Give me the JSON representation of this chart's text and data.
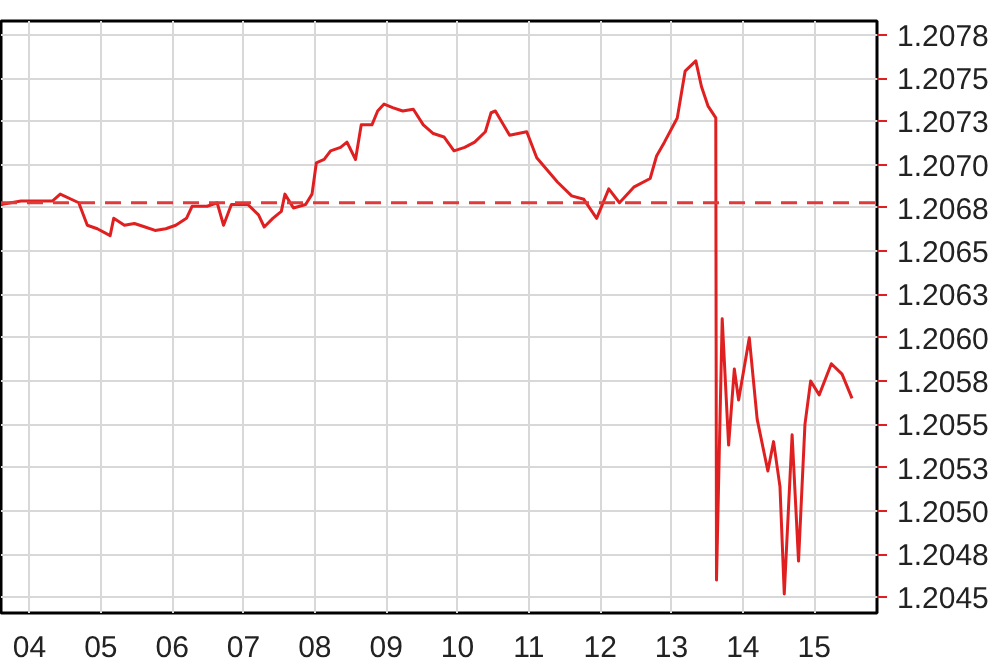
{
  "chart_data": {
    "type": "line",
    "x": [
      3.6,
      3.88,
      4.32,
      4.43,
      4.69,
      4.81,
      4.95,
      5.13,
      5.18,
      5.33,
      5.47,
      5.62,
      5.76,
      5.91,
      6.05,
      6.2,
      6.28,
      6.49,
      6.63,
      6.72,
      6.83,
      7.06,
      7.21,
      7.29,
      7.41,
      7.53,
      7.58,
      7.7,
      7.87,
      7.96,
      8.02,
      8.13,
      8.22,
      8.36,
      8.45,
      8.57,
      8.65,
      8.8,
      8.88,
      8.97,
      9.09,
      9.23,
      9.38,
      9.52,
      9.66,
      9.81,
      9.95,
      10.1,
      10.24,
      10.39,
      10.47,
      10.53,
      10.73,
      10.97,
      11.11,
      11.4,
      11.6,
      11.77,
      11.95,
      12.12,
      12.27,
      12.47,
      12.7,
      12.79,
      12.9,
      13.08,
      13.19,
      13.34,
      13.42,
      13.51,
      13.62,
      13.63,
      13.71,
      13.8,
      13.88,
      13.94,
      14.09,
      14.2,
      14.35,
      14.43,
      14.52,
      14.58,
      14.69,
      14.78,
      14.87,
      14.95,
      15.07,
      15.24,
      15.39,
      15.53
    ],
    "series": [
      {
        "color": "#e02020",
        "values": [
          1.20677,
          1.20679,
          1.20679,
          1.20683,
          1.20678,
          1.20665,
          1.20663,
          1.20659,
          1.20669,
          1.20665,
          1.20666,
          1.20664,
          1.20662,
          1.20663,
          1.20665,
          1.20669,
          1.20676,
          1.20676,
          1.20678,
          1.20665,
          1.20677,
          1.20677,
          1.20671,
          1.20664,
          1.20669,
          1.20673,
          1.20683,
          1.20675,
          1.20677,
          1.20683,
          1.20701,
          1.20703,
          1.20708,
          1.2071,
          1.20713,
          1.20703,
          1.20723,
          1.20723,
          1.20731,
          1.20735,
          1.20733,
          1.20731,
          1.20732,
          1.20723,
          1.20718,
          1.20716,
          1.20708,
          1.2071,
          1.20713,
          1.20719,
          1.2073,
          1.20731,
          1.20717,
          1.20719,
          1.20704,
          1.2069,
          1.20682,
          1.2068,
          1.20669,
          1.20686,
          1.20678,
          1.20687,
          1.20692,
          1.20705,
          1.20713,
          1.20727,
          1.20754,
          1.2076,
          1.20745,
          1.20734,
          1.20727,
          1.2046,
          1.20611,
          1.20538,
          1.20582,
          1.20564,
          1.206,
          1.20553,
          1.20523,
          1.2054,
          1.20514,
          1.20452,
          1.20544,
          1.20471,
          1.2055,
          1.20575,
          1.20567,
          1.20585,
          1.20579,
          1.20565
        ]
      }
    ],
    "xlim": [
      3.6,
      15.88
    ],
    "ylim": [
      1.20441,
      1.20783
    ],
    "xticks": [
      {
        "value": 4,
        "label": "04"
      },
      {
        "value": 5,
        "label": "05"
      },
      {
        "value": 6,
        "label": "06"
      },
      {
        "value": 7,
        "label": "07"
      },
      {
        "value": 8,
        "label": "08"
      },
      {
        "value": 9,
        "label": "09"
      },
      {
        "value": 10,
        "label": "10"
      },
      {
        "value": 11,
        "label": "11"
      },
      {
        "value": 12,
        "label": "12"
      },
      {
        "value": 13,
        "label": "13"
      },
      {
        "value": 14,
        "label": "14"
      },
      {
        "value": 15,
        "label": "15"
      }
    ],
    "yticks": [
      {
        "value": 1.2045,
        "label": "1.2045"
      },
      {
        "value": 1.20475,
        "label": "1.2048"
      },
      {
        "value": 1.205,
        "label": "1.2050"
      },
      {
        "value": 1.20525,
        "label": "1.2053"
      },
      {
        "value": 1.2055,
        "label": "1.2055"
      },
      {
        "value": 1.20575,
        "label": "1.2058"
      },
      {
        "value": 1.206,
        "label": "1.2060"
      },
      {
        "value": 1.20625,
        "label": "1.2063"
      },
      {
        "value": 1.2065,
        "label": "1.2065"
      },
      {
        "value": 1.20675,
        "label": "1.2068"
      },
      {
        "value": 1.207,
        "label": "1.2070"
      },
      {
        "value": 1.20725,
        "label": "1.2073"
      },
      {
        "value": 1.2075,
        "label": "1.2075"
      },
      {
        "value": 1.20775,
        "label": "1.2078"
      }
    ],
    "ref_lines": [
      {
        "axis": "y",
        "value": 1.20678,
        "color": "#e03a3a",
        "line_style": "dashed"
      }
    ],
    "grid": true,
    "marker": "none",
    "line_style": "solid"
  }
}
